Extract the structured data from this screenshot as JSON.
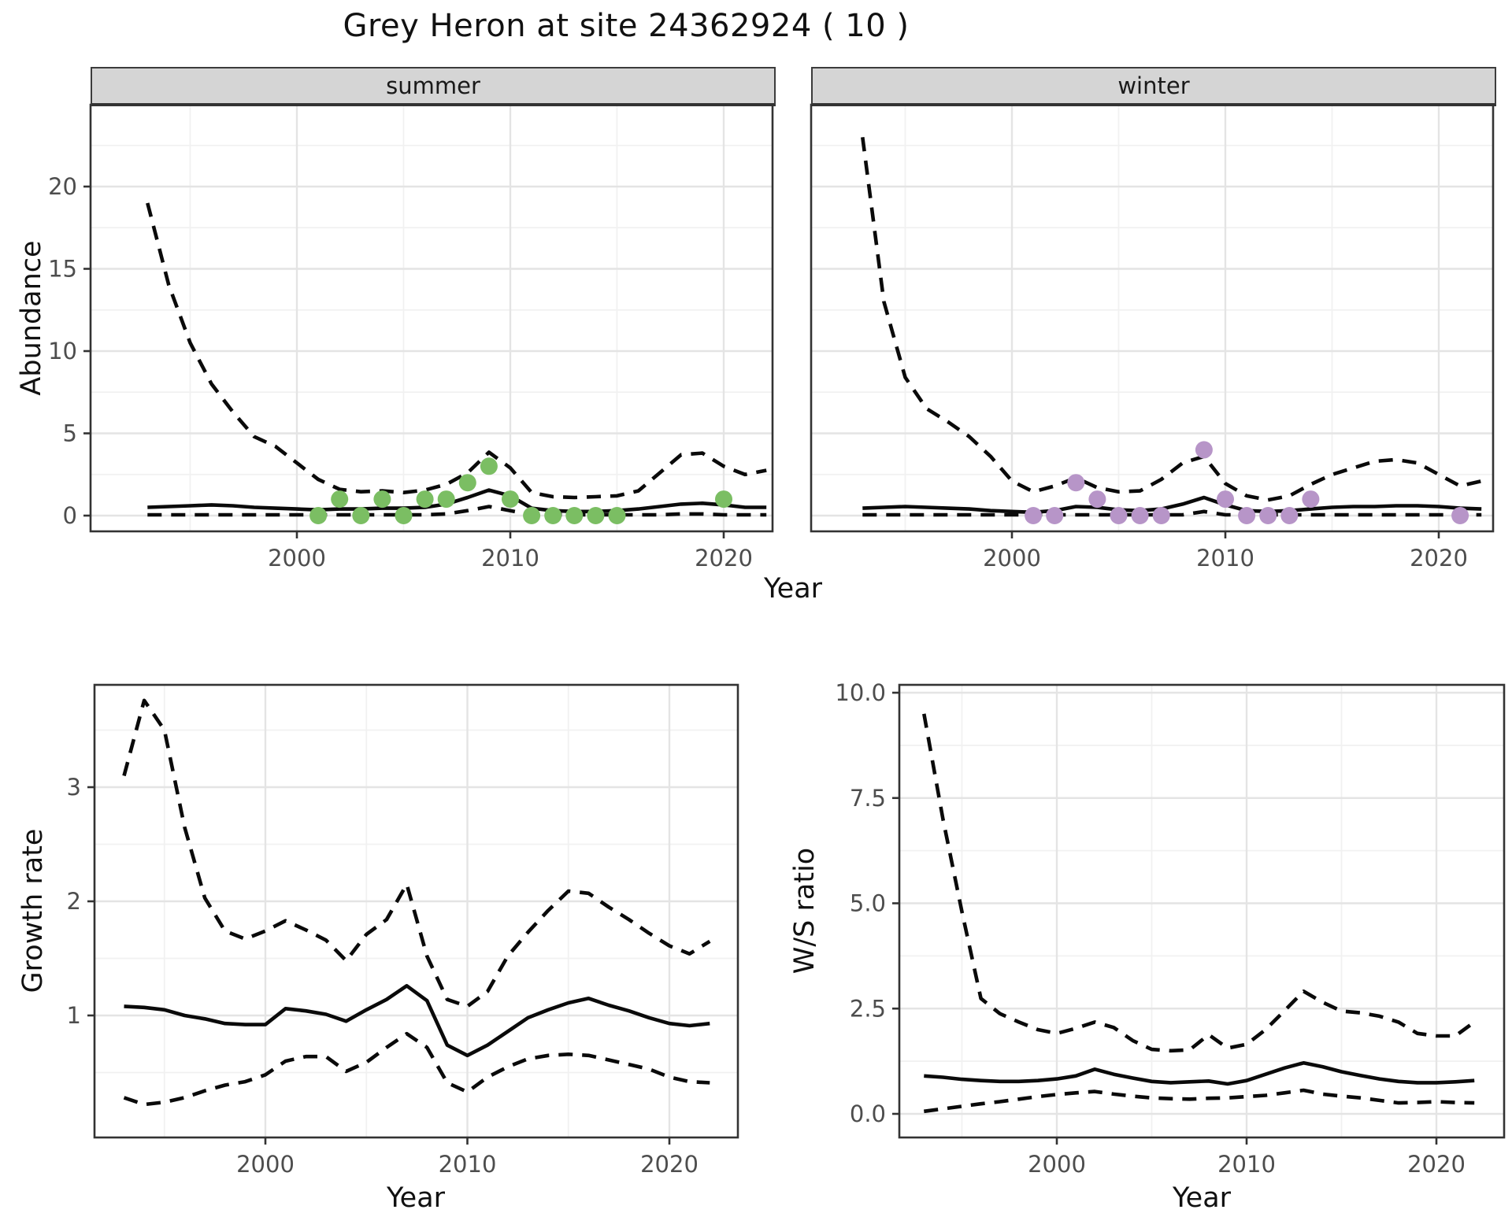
{
  "title": "Grey Heron at site 24362924 ( 10 )",
  "facets": {
    "summer": "summer",
    "winter": "winter"
  },
  "axes": {
    "abundance_label": "Abundance",
    "growth_label": "Growth rate",
    "ws_label": "W/S ratio",
    "year_label": "Year"
  },
  "colors": {
    "summer_point": "#7BBE63",
    "winter_point": "#B795C8",
    "line": "#0A0A0A",
    "strip_bg": "#D5D5D5",
    "grid_major": "#E4E4E4",
    "grid_minor": "#F1F1F1",
    "axis_text": "#4D4D4D",
    "panel_border": "#333333"
  },
  "chart_data": [
    {
      "id": "abundance-summer",
      "type": "line",
      "facet": "summer",
      "xlabel": "Year",
      "ylabel": "Abundance",
      "ylim": [
        0,
        25
      ],
      "grid": true,
      "xticks": {
        "values": [
          2000,
          2010,
          2020
        ],
        "labels": [
          "2000",
          "2010",
          "2020"
        ]
      },
      "yticks": {
        "values": [
          0,
          5,
          10,
          15,
          20
        ],
        "labels": [
          "0",
          "5",
          "10",
          "15",
          "20"
        ]
      },
      "x": [
        1993,
        1994,
        1995,
        1996,
        1997,
        1998,
        1999,
        2000,
        2001,
        2002,
        2003,
        2004,
        2005,
        2006,
        2007,
        2008,
        2009,
        2010,
        2011,
        2012,
        2013,
        2014,
        2015,
        2016,
        2017,
        2018,
        2019,
        2020,
        2021,
        2022
      ],
      "series": [
        {
          "name": "mean",
          "line_style": "solid",
          "values": [
            0.5,
            0.55,
            0.6,
            0.65,
            0.6,
            0.5,
            0.45,
            0.4,
            0.35,
            0.4,
            0.4,
            0.45,
            0.45,
            0.5,
            0.7,
            1.1,
            1.55,
            1.2,
            0.45,
            0.3,
            0.25,
            0.25,
            0.3,
            0.4,
            0.55,
            0.7,
            0.75,
            0.65,
            0.5,
            0.5
          ]
        },
        {
          "name": "upper-ci",
          "line_style": "dashed",
          "values": [
            19,
            14,
            10.5,
            8,
            6.3,
            4.8,
            4.2,
            3.2,
            2.2,
            1.6,
            1.45,
            1.5,
            1.4,
            1.55,
            1.9,
            2.6,
            3.85,
            2.9,
            1.4,
            1.15,
            1.1,
            1.15,
            1.2,
            1.5,
            2.6,
            3.7,
            3.8,
            3.0,
            2.5,
            2.75
          ]
        },
        {
          "name": "lower-ci",
          "line_style": "dashed",
          "values": [
            0.05,
            0.05,
            0.05,
            0.05,
            0.05,
            0.05,
            0.05,
            0.05,
            0.05,
            0.05,
            0.05,
            0.05,
            0.05,
            0.05,
            0.1,
            0.3,
            0.55,
            0.3,
            0.05,
            0.05,
            0.05,
            0.05,
            0.05,
            0.05,
            0.05,
            0.1,
            0.1,
            0.05,
            0.05,
            0.05
          ]
        }
      ],
      "points": {
        "name": "summer-observations",
        "color": "#7BBE63",
        "x": [
          2001,
          2002,
          2003,
          2004,
          2005,
          2006,
          2007,
          2008,
          2009,
          2010,
          2011,
          2012,
          2013,
          2014,
          2015,
          2020
        ],
        "y": [
          0,
          1,
          0,
          1,
          0,
          1,
          1,
          2,
          3,
          1,
          0,
          0,
          0,
          0,
          0,
          1
        ]
      }
    },
    {
      "id": "abundance-winter",
      "type": "line",
      "facet": "winter",
      "xlabel": "Year",
      "ylabel": "Abundance",
      "ylim": [
        0,
        25
      ],
      "grid": true,
      "xticks": {
        "values": [
          2000,
          2010,
          2020
        ],
        "labels": [
          "2000",
          "2010",
          "2020"
        ]
      },
      "yticks": {
        "values": [
          0,
          5,
          10,
          15,
          20
        ],
        "labels": [
          "0",
          "5",
          "10",
          "15",
          "20"
        ]
      },
      "x": [
        1993,
        1994,
        1995,
        1996,
        1997,
        1998,
        1999,
        2000,
        2001,
        2002,
        2003,
        2004,
        2005,
        2006,
        2007,
        2008,
        2009,
        2010,
        2011,
        2012,
        2013,
        2014,
        2015,
        2016,
        2017,
        2018,
        2019,
        2020,
        2021,
        2022
      ],
      "series": [
        {
          "name": "mean",
          "line_style": "solid",
          "values": [
            0.45,
            0.5,
            0.55,
            0.5,
            0.45,
            0.4,
            0.3,
            0.25,
            0.2,
            0.3,
            0.55,
            0.5,
            0.35,
            0.3,
            0.4,
            0.7,
            1.1,
            0.65,
            0.3,
            0.25,
            0.3,
            0.4,
            0.5,
            0.55,
            0.55,
            0.6,
            0.6,
            0.55,
            0.45,
            0.4
          ]
        },
        {
          "name": "upper-ci",
          "line_style": "dashed",
          "values": [
            23,
            13,
            8.4,
            6.5,
            5.7,
            4.8,
            3.6,
            2.1,
            1.45,
            1.8,
            2.3,
            1.7,
            1.45,
            1.5,
            2.2,
            3.2,
            3.6,
            1.95,
            1.2,
            0.95,
            1.2,
            1.9,
            2.5,
            2.9,
            3.3,
            3.4,
            3.2,
            2.5,
            1.8,
            2.1
          ]
        },
        {
          "name": "lower-ci",
          "line_style": "dashed",
          "values": [
            0.05,
            0.05,
            0.05,
            0.05,
            0.05,
            0.05,
            0.05,
            0.05,
            0.05,
            0.05,
            0.05,
            0.05,
            0.05,
            0.05,
            0.05,
            0.05,
            0.25,
            0.05,
            0.05,
            0.05,
            0.05,
            0.05,
            0.05,
            0.05,
            0.05,
            0.05,
            0.05,
            0.05,
            0.05,
            0.05
          ]
        }
      ],
      "points": {
        "name": "winter-observations",
        "color": "#B795C8",
        "x": [
          2001,
          2002,
          2003,
          2004,
          2005,
          2006,
          2007,
          2009,
          2010,
          2011,
          2012,
          2013,
          2014,
          2021
        ],
        "y": [
          0,
          0,
          2,
          1,
          0,
          0,
          0,
          4,
          1,
          0,
          0,
          0,
          1,
          0
        ]
      }
    },
    {
      "id": "growth-rate",
      "type": "line",
      "xlabel": "Year",
      "ylabel": "Growth rate",
      "ylim": [
        -0.05,
        3.9
      ],
      "grid": true,
      "xticks": {
        "values": [
          2000,
          2010,
          2020
        ],
        "labels": [
          "2000",
          "2010",
          "2020"
        ]
      },
      "yticks": {
        "values": [
          1,
          2,
          3
        ],
        "labels": [
          "1",
          "2",
          "3"
        ]
      },
      "x": [
        1993,
        1994,
        1995,
        1996,
        1997,
        1998,
        1999,
        2000,
        2001,
        2002,
        2003,
        2004,
        2005,
        2006,
        2007,
        2008,
        2009,
        2010,
        2011,
        2012,
        2013,
        2014,
        2015,
        2016,
        2017,
        2018,
        2019,
        2020,
        2021,
        2022
      ],
      "series": [
        {
          "name": "mean",
          "line_style": "solid",
          "values": [
            1.08,
            1.07,
            1.05,
            1.0,
            0.97,
            0.93,
            0.92,
            0.92,
            1.06,
            1.04,
            1.01,
            0.95,
            1.05,
            1.14,
            1.26,
            1.13,
            0.74,
            0.65,
            0.74,
            0.86,
            0.98,
            1.05,
            1.11,
            1.15,
            1.09,
            1.04,
            0.98,
            0.93,
            0.91,
            0.93
          ]
        },
        {
          "name": "upper-ci",
          "line_style": "dashed",
          "values": [
            3.1,
            3.76,
            3.5,
            2.65,
            2.03,
            1.74,
            1.67,
            1.74,
            1.83,
            1.75,
            1.66,
            1.48,
            1.71,
            1.84,
            2.15,
            1.52,
            1.14,
            1.08,
            1.21,
            1.52,
            1.73,
            1.92,
            2.09,
            2.07,
            1.95,
            1.84,
            1.72,
            1.61,
            1.54,
            1.65
          ]
        },
        {
          "name": "lower-ci",
          "line_style": "dashed",
          "values": [
            0.28,
            0.22,
            0.24,
            0.28,
            0.34,
            0.39,
            0.42,
            0.48,
            0.6,
            0.64,
            0.64,
            0.51,
            0.59,
            0.72,
            0.84,
            0.72,
            0.41,
            0.33,
            0.46,
            0.55,
            0.62,
            0.65,
            0.66,
            0.65,
            0.61,
            0.57,
            0.53,
            0.46,
            0.42,
            0.41
          ]
        }
      ]
    },
    {
      "id": "ws-ratio",
      "type": "line",
      "xlabel": "Year",
      "ylabel": "W/S ratio",
      "ylim": [
        -0.55,
        10.2
      ],
      "grid": true,
      "xticks": {
        "values": [
          2000,
          2010,
          2020
        ],
        "labels": [
          "2000",
          "2010",
          "2020"
        ]
      },
      "yticks": {
        "values": [
          0,
          2.5,
          5,
          7.5,
          10
        ],
        "labels": [
          "0.0",
          "2.5",
          "5.0",
          "7.5",
          "10.0"
        ]
      },
      "x": [
        1993,
        1994,
        1995,
        1996,
        1997,
        1998,
        1999,
        2000,
        2001,
        2002,
        2003,
        2004,
        2005,
        2006,
        2007,
        2008,
        2009,
        2010,
        2011,
        2012,
        2013,
        2014,
        2015,
        2016,
        2017,
        2018,
        2019,
        2020,
        2021,
        2022
      ],
      "series": [
        {
          "name": "mean",
          "line_style": "solid",
          "values": [
            0.9,
            0.87,
            0.82,
            0.79,
            0.77,
            0.77,
            0.79,
            0.83,
            0.9,
            1.06,
            0.94,
            0.85,
            0.77,
            0.74,
            0.76,
            0.78,
            0.71,
            0.79,
            0.94,
            1.09,
            1.21,
            1.12,
            1.0,
            0.91,
            0.83,
            0.77,
            0.74,
            0.74,
            0.76,
            0.79
          ]
        },
        {
          "name": "upper-ci",
          "line_style": "dashed",
          "values": [
            9.5,
            7.0,
            4.8,
            2.74,
            2.38,
            2.18,
            2.0,
            1.91,
            2.03,
            2.18,
            2.05,
            1.74,
            1.53,
            1.5,
            1.52,
            1.88,
            1.56,
            1.65,
            2.0,
            2.45,
            2.91,
            2.65,
            2.44,
            2.4,
            2.32,
            2.18,
            1.91,
            1.85,
            1.85,
            2.18
          ]
        },
        {
          "name": "lower-ci",
          "line_style": "dashed",
          "values": [
            0.06,
            0.12,
            0.18,
            0.24,
            0.29,
            0.35,
            0.41,
            0.46,
            0.5,
            0.53,
            0.47,
            0.42,
            0.38,
            0.36,
            0.35,
            0.37,
            0.38,
            0.41,
            0.44,
            0.5,
            0.56,
            0.47,
            0.42,
            0.38,
            0.32,
            0.26,
            0.27,
            0.29,
            0.27,
            0.26
          ]
        }
      ]
    }
  ]
}
